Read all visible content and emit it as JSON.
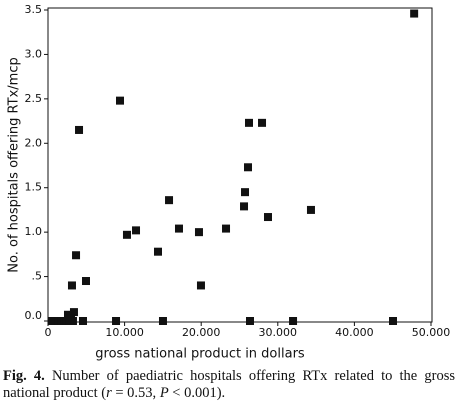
{
  "chart_data": {
    "type": "scatter",
    "x_label": "gross national product in dollars",
    "y_label": "No. of hospitals offering RTx/mcp",
    "xlim": [
      0,
      50000
    ],
    "ylim": [
      0,
      3.5
    ],
    "xticks": [
      0,
      {
        "value": 10000,
        "label": "10.000"
      },
      {
        "value": 20000,
        "label": "20.000"
      },
      {
        "value": 30000,
        "label": "30.000"
      },
      {
        "value": 40000,
        "label": "40.000"
      },
      {
        "value": 50000,
        "label": "50.000"
      }
    ],
    "yticks": [
      {
        "value": 0,
        "label": "0.0"
      },
      {
        "value": 0.5,
        "label": ".5"
      },
      {
        "value": 1,
        "label": "1.0"
      },
      {
        "value": 1.5,
        "label": "1.5"
      },
      {
        "value": 2,
        "label": "2.0"
      },
      {
        "value": 2.5,
        "label": "2.5"
      },
      {
        "value": 3,
        "label": "3.0"
      },
      {
        "value": 3.5,
        "label": "3.5"
      }
    ],
    "color": "#111111",
    "x": [
      47800,
      9400,
      4050,
      26240,
      27940,
      26110,
      25720,
      15800,
      25590,
      28720,
      34330,
      17100,
      11490,
      10310,
      19710,
      23240,
      14360,
      3660,
      19970,
      4960,
      3130,
      3390,
      2610,
      3000,
      520,
      910,
      1310,
      1700,
      2090,
      2480,
      2870,
      3260,
      4570,
      8880,
      15010,
      26370,
      31990,
      45040
    ],
    "y": [
      3.46,
      2.48,
      2.15,
      2.23,
      2.23,
      1.73,
      1.45,
      1.36,
      1.29,
      1.17,
      1.25,
      1.04,
      1.02,
      0.97,
      1.0,
      1.04,
      0.78,
      0.74,
      0.4,
      0.45,
      0.4,
      0.1,
      0.07,
      0.03,
      0,
      0,
      0,
      0,
      0,
      0,
      0,
      0,
      0,
      0,
      0,
      0,
      0,
      0
    ]
  },
  "caption": {
    "label": "Fig. 4.",
    "text_1": " Number of paediatric hospitals offering RTx related to the gross national product (",
    "r": "r",
    "text_2": " = 0.53, ",
    "p": "P",
    "text_3": " < 0.001)."
  }
}
